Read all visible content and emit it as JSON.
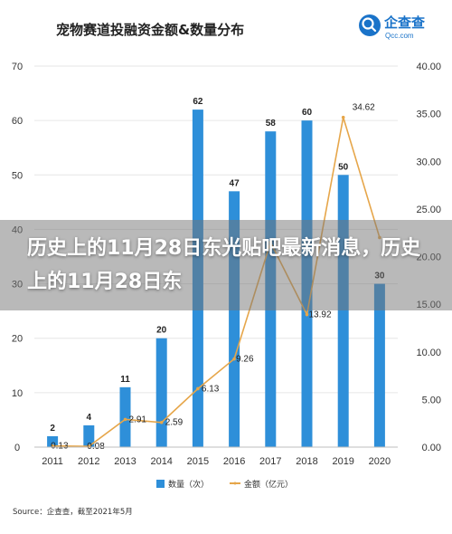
{
  "overlay": {
    "headline": "历史上的11月28日东光贴吧最新消息，历史上的11月28日东"
  },
  "logo": {
    "name": "企查查",
    "url": "Qcc.com"
  },
  "source_note": "Source：企查查，截至2021年5月",
  "colors": {
    "bar": "#2e8fd9",
    "line": "#e6a64a",
    "grid": "#e6e6e6",
    "logo": "#1a73c9"
  },
  "chart_data": {
    "type": "bar",
    "title": "宠物赛道投融资金额&数量分布",
    "categories": [
      "2011",
      "2012",
      "2013",
      "2014",
      "2015",
      "2016",
      "2017",
      "2018",
      "2019",
      "2020"
    ],
    "series": [
      {
        "name": "数量（次）",
        "type": "bar",
        "axis": "left",
        "values": [
          2,
          4,
          11,
          20,
          62,
          47,
          58,
          60,
          50,
          30
        ]
      },
      {
        "name": "金额（亿元）",
        "type": "line",
        "axis": "right",
        "values": [
          0.13,
          0.08,
          2.91,
          2.59,
          6.13,
          9.26,
          21.5,
          13.92,
          34.62,
          22.0
        ]
      }
    ],
    "bar_labels": [
      "2",
      "4",
      "11",
      "20",
      "62",
      "47",
      "58",
      "60",
      "50",
      "30"
    ],
    "line_labels": [
      "0.13",
      "0.08",
      "2.91",
      "2.59",
      "6.13",
      "9.26",
      "",
      "13.92",
      "34.62",
      ""
    ],
    "y_left": {
      "ticks": [
        "0",
        "10",
        "20",
        "30",
        "40",
        "50",
        "60",
        "70"
      ],
      "range": [
        0,
        70
      ]
    },
    "y_right": {
      "ticks": [
        "0.00",
        "5.00",
        "10.00",
        "15.00",
        "20.00",
        "25.00",
        "30.00",
        "35.00",
        "40.00"
      ],
      "range": [
        0,
        40
      ]
    },
    "legend": [
      "数量（次）",
      "金额（亿元）"
    ],
    "legend_position": "bottom",
    "grid": true
  }
}
